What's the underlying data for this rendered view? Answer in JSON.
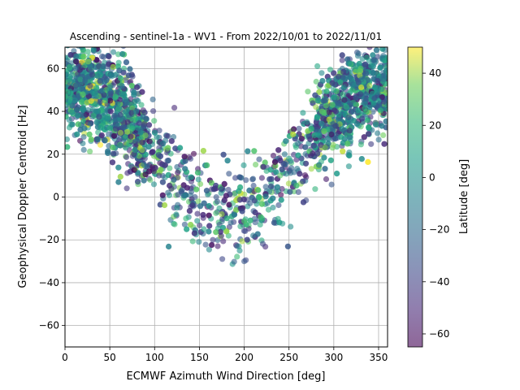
{
  "chart_data": {
    "type": "scatter",
    "title": "Ascending - sentinel-1a - WV1 - From 2022/10/01 to 2022/11/01",
    "xlabel": "ECMWF Azimuth Wind Direction [deg]",
    "ylabel": "Geophysical Doppler Centroid [Hz]",
    "xlim": [
      0,
      360
    ],
    "ylim": [
      -70,
      70
    ],
    "xticks": [
      0,
      50,
      100,
      150,
      200,
      250,
      300,
      350
    ],
    "yticks": [
      -60,
      -40,
      -20,
      0,
      20,
      40,
      60
    ],
    "grid": true,
    "colorbar": {
      "label": "Latitude [deg]",
      "range": [
        -65,
        50
      ],
      "ticks": [
        -60,
        -40,
        -20,
        0,
        20,
        40
      ],
      "colormap": "viridis",
      "alpha": 0.6
    },
    "point_count": 3000,
    "trend_description_x": [
      0,
      25,
      50,
      75,
      100,
      125,
      150,
      175,
      200,
      225,
      250,
      275,
      300,
      325,
      350,
      360
    ],
    "trend_center_y": [
      52,
      50,
      44,
      34,
      18,
      4,
      -5,
      -9,
      -6,
      2,
      14,
      28,
      40,
      48,
      50,
      50
    ],
    "series": [
      {
        "name": "",
        "x": [
          5,
          12,
          20,
          28,
          35,
          45,
          55,
          62,
          70,
          78,
          88,
          95,
          105,
          115,
          125,
          135,
          145,
          155,
          165,
          175,
          185,
          195,
          200,
          210,
          220,
          230,
          240,
          250,
          260,
          270,
          280,
          290,
          300,
          310,
          320,
          330,
          340,
          350,
          355
        ],
        "y": [
          55,
          60,
          48,
          52,
          40,
          45,
          38,
          30,
          35,
          22,
          15,
          8,
          10,
          2,
          -5,
          -10,
          0,
          -15,
          -20,
          -8,
          -12,
          -25,
          -30,
          -18,
          -10,
          5,
          10,
          18,
          25,
          35,
          42,
          45,
          50,
          48,
          55,
          60,
          52,
          45,
          58
        ],
        "latitude": [
          10,
          -20,
          30,
          -40,
          0,
          20,
          -30,
          40,
          -50,
          10,
          -10,
          30,
          -40,
          -20,
          0,
          20,
          -30,
          10,
          -40,
          40,
          -20,
          0,
          -30,
          -10,
          20,
          -40,
          30,
          10,
          -20,
          0,
          40,
          -30,
          10,
          20,
          -10,
          30,
          40,
          0,
          -20
        ]
      }
    ]
  }
}
